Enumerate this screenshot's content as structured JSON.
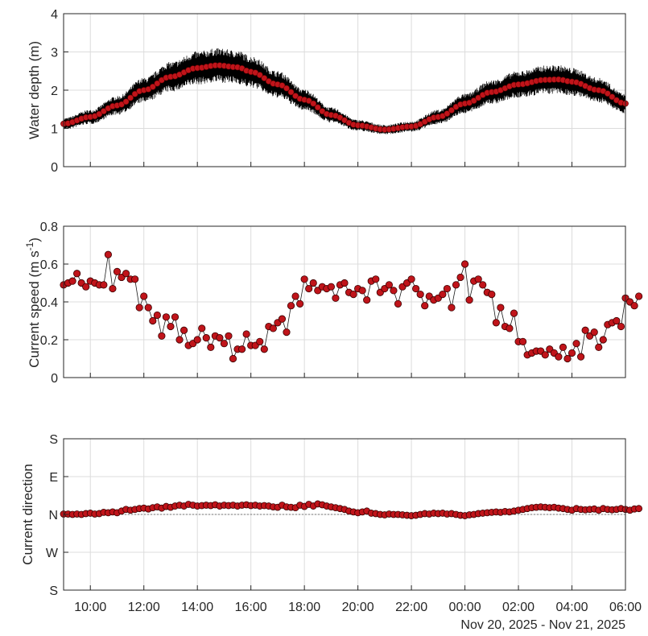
{
  "chart_data": [
    {
      "type": "line",
      "id": "depth",
      "ylabel": "Water depth (m)",
      "ylim": [
        0,
        4
      ],
      "yticks": [
        "0",
        "1",
        "2",
        "3",
        "4"
      ],
      "ytick_values": [
        0,
        1,
        2,
        3,
        4
      ],
      "grid": true,
      "colors": {
        "band": "#000000",
        "points": "#c0141a",
        "point_edge": "#5a0000"
      },
      "series_model": {
        "description_of_shape": "mean depth sampled every 10 min, raw high-frequency signal shown as black band around it",
        "x_start": "2025-11-20T09:00",
        "x_end": "2025-11-21T06:00",
        "mean_points": [
          [
            "09:00",
            1.12
          ],
          [
            "10:00",
            1.3
          ],
          [
            "11:00",
            1.6
          ],
          [
            "12:00",
            2.0
          ],
          [
            "13:00",
            2.35
          ],
          [
            "14:00",
            2.58
          ],
          [
            "14:45",
            2.65
          ],
          [
            "15:30",
            2.6
          ],
          [
            "16:00",
            2.48
          ],
          [
            "17:00",
            2.15
          ],
          [
            "18:00",
            1.75
          ],
          [
            "19:00",
            1.35
          ],
          [
            "20:00",
            1.08
          ],
          [
            "21:00",
            0.97
          ],
          [
            "22:00",
            1.05
          ],
          [
            "23:00",
            1.3
          ],
          [
            "00:00",
            1.65
          ],
          [
            "01:00",
            1.95
          ],
          [
            "02:00",
            2.15
          ],
          [
            "03:00",
            2.27
          ],
          [
            "03:30",
            2.28
          ],
          [
            "04:00",
            2.22
          ],
          [
            "05:00",
            2.0
          ],
          [
            "06:00",
            1.65
          ]
        ],
        "band_halfwidth_m": [
          0.12,
          0.45
        ]
      }
    },
    {
      "type": "line",
      "id": "speed",
      "ylabel": "Current speed (m s-1)",
      "ylabel_parts": {
        "main": "Current speed (m s",
        "sup": "-1",
        "close": ")"
      },
      "ylim": [
        0,
        0.8
      ],
      "yticks": [
        "0",
        "0.2",
        "0.4",
        "0.6",
        "0.8"
      ],
      "ytick_values": [
        0,
        0.2,
        0.4,
        0.6,
        0.8
      ],
      "grid": true,
      "x_start": "2025-11-20T09:00",
      "x_step_minutes": 10,
      "values": [
        0.49,
        0.5,
        0.51,
        0.55,
        0.5,
        0.48,
        0.51,
        0.5,
        0.49,
        0.49,
        0.65,
        0.47,
        0.56,
        0.53,
        0.55,
        0.52,
        0.52,
        0.37,
        0.43,
        0.37,
        0.3,
        0.33,
        0.22,
        0.32,
        0.27,
        0.32,
        0.2,
        0.25,
        0.17,
        0.18,
        0.2,
        0.26,
        0.21,
        0.16,
        0.22,
        0.21,
        0.18,
        0.22,
        0.1,
        0.15,
        0.15,
        0.23,
        0.17,
        0.17,
        0.19,
        0.15,
        0.27,
        0.26,
        0.29,
        0.31,
        0.24,
        0.38,
        0.43,
        0.39,
        0.52,
        0.47,
        0.5,
        0.46,
        0.48,
        0.47,
        0.48,
        0.42,
        0.49,
        0.5,
        0.45,
        0.44,
        0.47,
        0.46,
        0.41,
        0.51,
        0.52,
        0.45,
        0.47,
        0.49,
        0.46,
        0.39,
        0.48,
        0.5,
        0.52,
        0.47,
        0.44,
        0.38,
        0.43,
        0.41,
        0.42,
        0.44,
        0.47,
        0.37,
        0.49,
        0.53,
        0.6,
        0.41,
        0.51,
        0.52,
        0.49,
        0.45,
        0.44,
        0.29,
        0.37,
        0.27,
        0.26,
        0.34,
        0.19,
        0.19,
        0.12,
        0.13,
        0.14,
        0.14,
        0.12,
        0.15,
        0.13,
        0.11,
        0.16,
        0.1,
        0.13,
        0.18,
        0.11,
        0.25,
        0.22,
        0.24,
        0.16,
        0.2,
        0.28,
        0.29,
        0.3,
        0.27,
        0.42,
        0.4,
        0.38,
        0.43
      ]
    },
    {
      "type": "line",
      "id": "direction",
      "ylabel": "Current direction",
      "yticks": [
        "S",
        "E",
        "N",
        "W",
        "S"
      ],
      "ytick_values": [
        180,
        90,
        0,
        -90,
        -180
      ],
      "ylim": [
        -180,
        180
      ],
      "reference_line": 0,
      "grid": true,
      "x_start": "2025-11-20T09:00",
      "x_step_minutes": 10,
      "values": [
        1,
        1,
        0,
        1,
        0,
        2,
        3,
        1,
        2,
        5,
        4,
        6,
        4,
        8,
        12,
        10,
        12,
        14,
        15,
        13,
        16,
        18,
        15,
        19,
        17,
        20,
        22,
        20,
        24,
        22,
        20,
        21,
        22,
        21,
        23,
        20,
        22,
        21,
        22,
        20,
        22,
        23,
        21,
        22,
        20,
        21,
        20,
        18,
        17,
        22,
        18,
        17,
        16,
        22,
        19,
        24,
        20,
        25,
        23,
        20,
        18,
        16,
        14,
        12,
        8,
        6,
        4,
        6,
        8,
        3,
        2,
        0,
        -1,
        1,
        0,
        0,
        -1,
        -2,
        -3,
        -2,
        0,
        2,
        1,
        3,
        2,
        3,
        1,
        2,
        0,
        -2,
        -3,
        -1,
        0,
        2,
        3,
        4,
        5,
        6,
        5,
        7,
        6,
        8,
        10,
        12,
        14,
        16,
        17,
        18,
        17,
        16,
        17,
        15,
        14,
        12,
        10,
        14,
        12,
        11,
        12,
        13,
        10,
        14,
        12,
        11,
        12,
        14,
        12,
        10,
        13,
        14
      ]
    }
  ],
  "x_axis": {
    "tick_labels": [
      "10:00",
      "12:00",
      "14:00",
      "16:00",
      "18:00",
      "20:00",
      "22:00",
      "00:00",
      "02:00",
      "04:00",
      "06:00"
    ],
    "tick_hours": [
      10,
      12,
      14,
      16,
      18,
      20,
      22,
      24,
      26,
      28,
      30
    ],
    "range_hours": [
      9,
      30
    ],
    "date_label": "Nov 20, 2025 - Nov 21, 2025"
  }
}
